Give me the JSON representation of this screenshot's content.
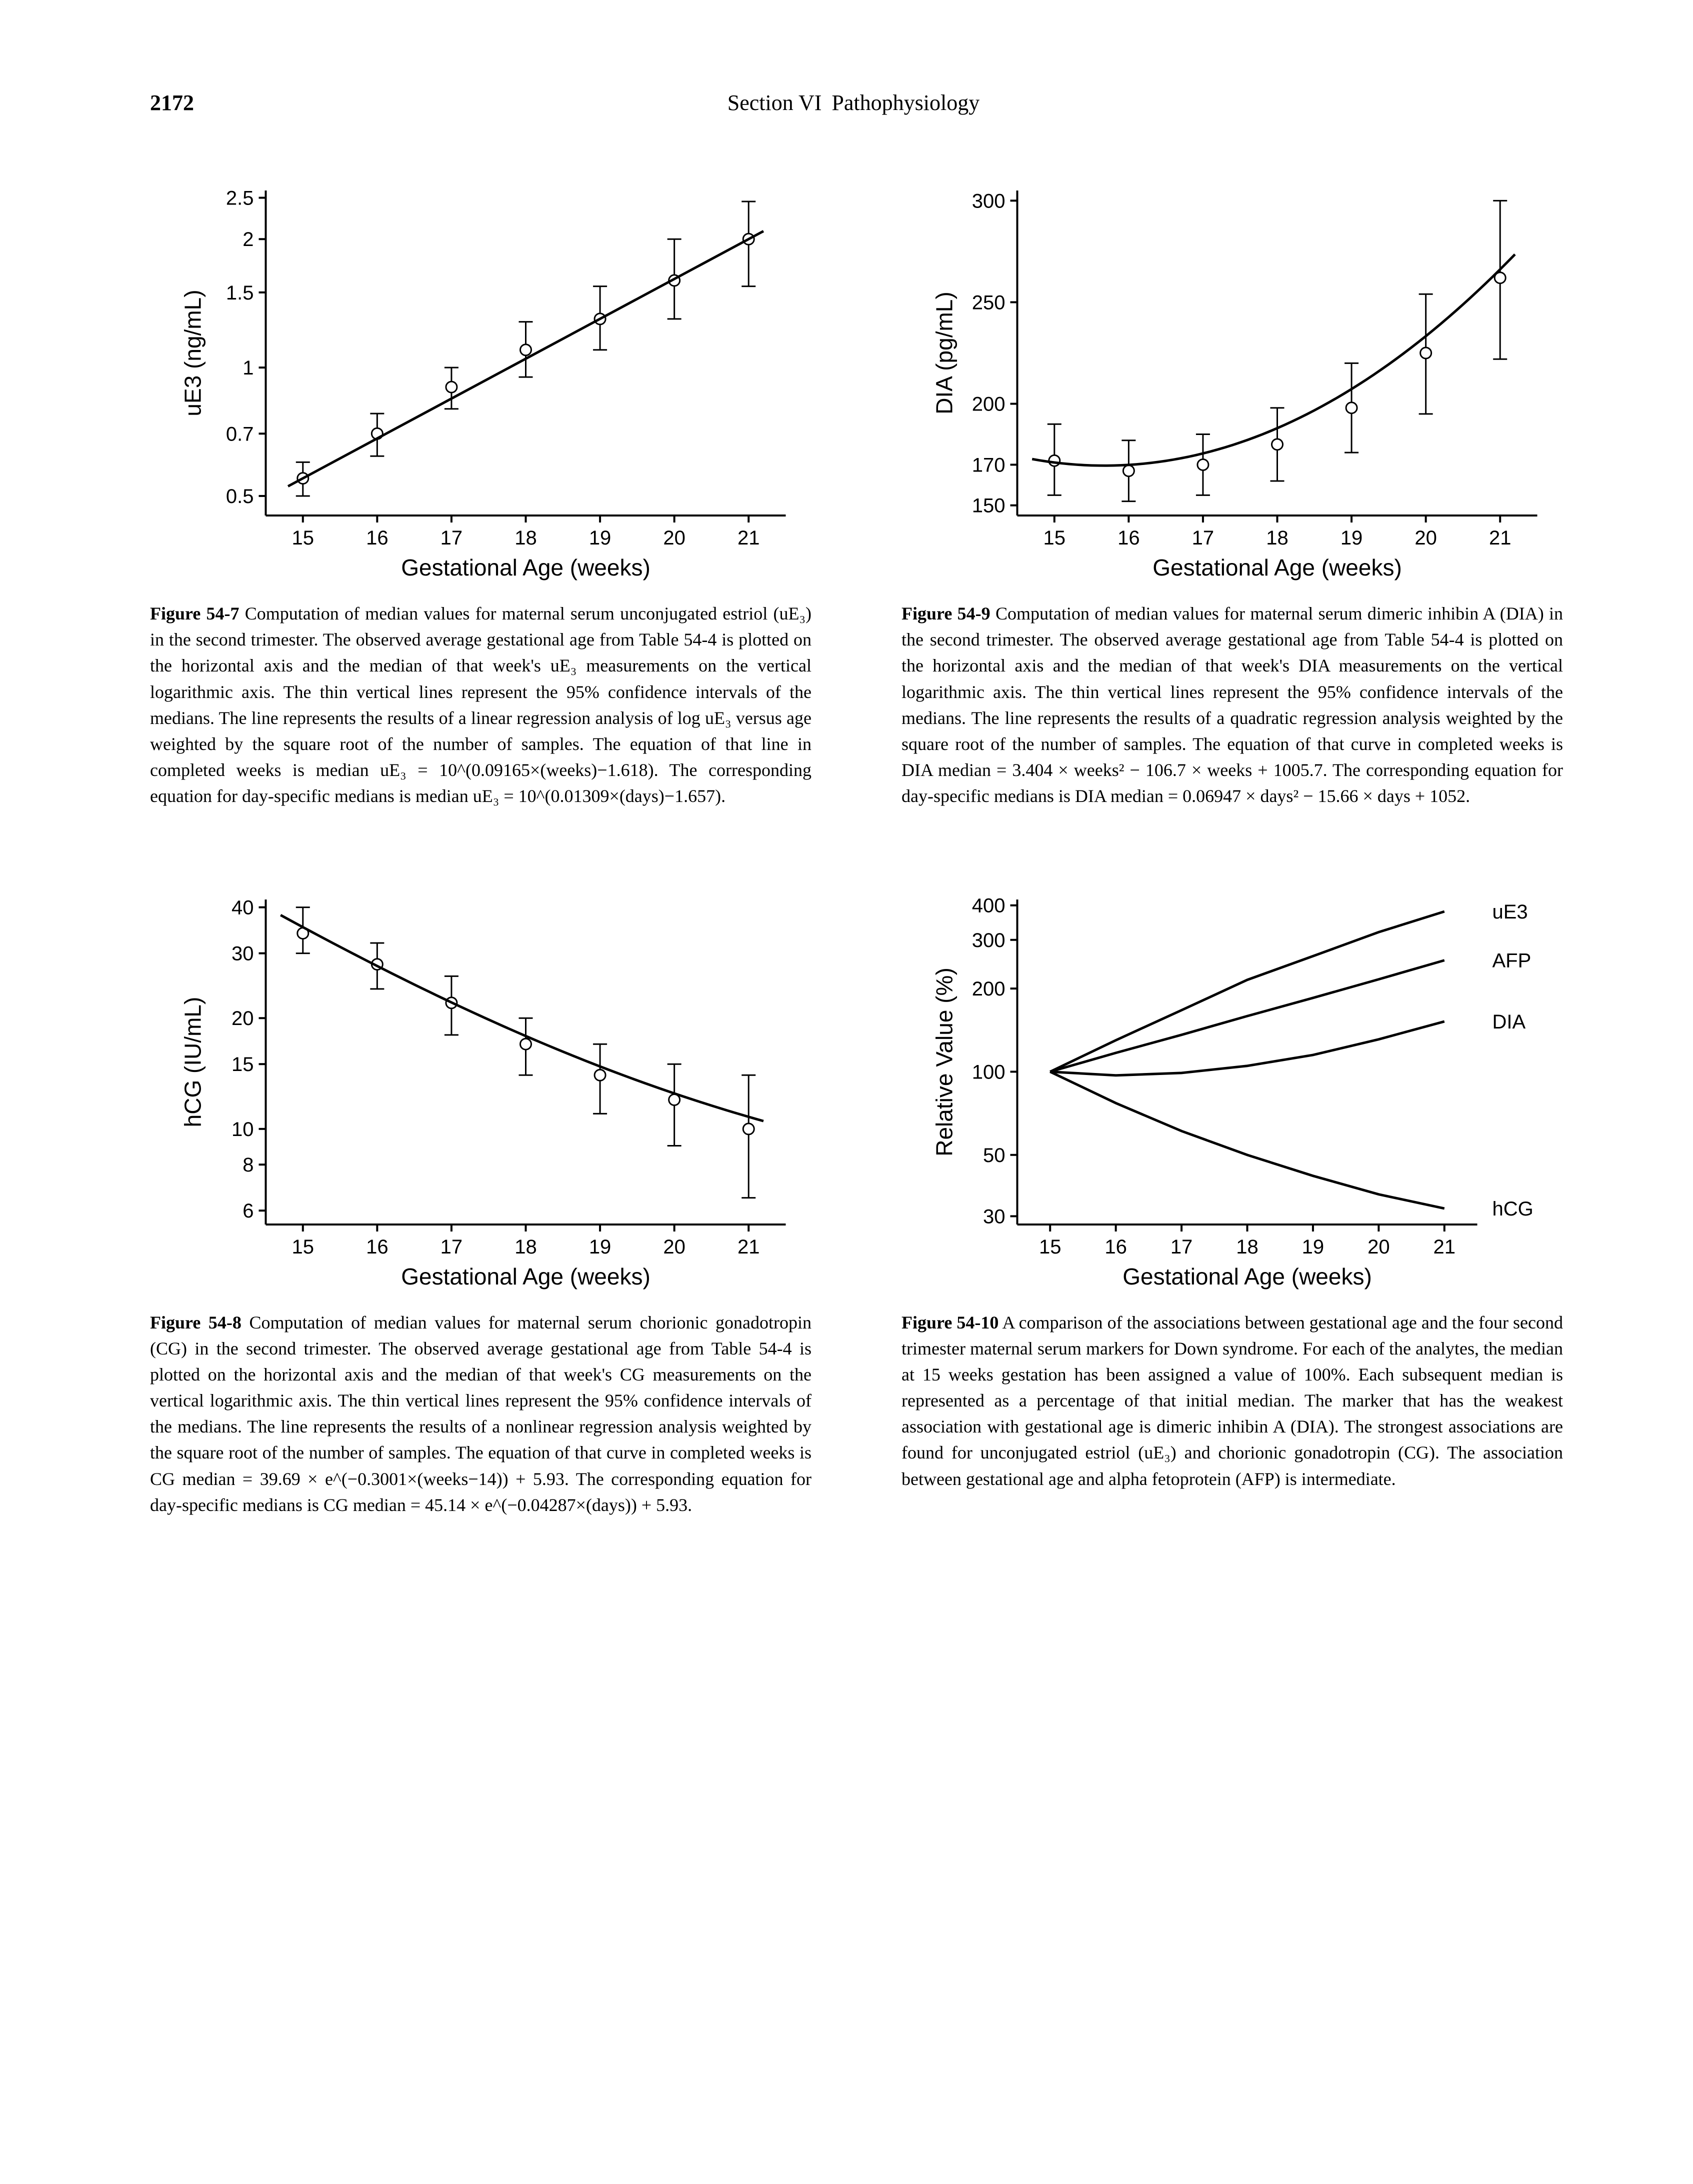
{
  "header": {
    "page_number": "2172",
    "section_label": "Section VI",
    "section_title": "Pathophysiology"
  },
  "fig7": {
    "type": "line-with-errorbars",
    "x_label": "Gestational Age (weeks)",
    "y_label": "uE3 (ng/mL)",
    "x_ticks": [
      15,
      16,
      17,
      18,
      19,
      20,
      21
    ],
    "y_ticks": [
      0.5,
      0.7,
      1.0,
      1.5,
      2.0,
      2.5
    ],
    "y_scale": "log",
    "points": [
      {
        "x": 15,
        "y": 0.55,
        "lo": 0.5,
        "hi": 0.6
      },
      {
        "x": 16,
        "y": 0.7,
        "lo": 0.62,
        "hi": 0.78
      },
      {
        "x": 17,
        "y": 0.9,
        "lo": 0.8,
        "hi": 1.0
      },
      {
        "x": 18,
        "y": 1.1,
        "lo": 0.95,
        "hi": 1.28
      },
      {
        "x": 19,
        "y": 1.3,
        "lo": 1.1,
        "hi": 1.55
      },
      {
        "x": 20,
        "y": 1.6,
        "lo": 1.3,
        "hi": 2.0
      },
      {
        "x": 21,
        "y": 2.0,
        "lo": 1.55,
        "hi": 2.45
      }
    ],
    "xlim": [
      14.5,
      21.5
    ],
    "ylim": [
      0.45,
      2.6
    ],
    "label": "Figure 54-7",
    "caption": "Computation of median values for maternal serum unconjugated estriol (uE₃) in the second trimester. The observed average gestational age from Table 54-4 is plotted on the horizontal axis and the median of that week's uE₃ measurements on the vertical logarithmic axis. The thin vertical lines represent the 95% confidence intervals of the medians. The line represents the results of a linear regression analysis of log uE₃ versus age weighted by the square root of the number of samples. The equation of that line in completed weeks is median uE₃ = 10^(0.09165×(weeks)−1.618). The corresponding equation for day-specific medians is median uE₃ = 10^(0.01309×(days)−1.657)."
  },
  "fig8": {
    "type": "line-with-errorbars",
    "x_label": "Gestational Age (weeks)",
    "y_label": "hCG (IU/mL)",
    "x_ticks": [
      15,
      16,
      17,
      18,
      19,
      20,
      21
    ],
    "y_ticks": [
      6,
      8,
      10,
      15,
      20,
      30,
      40
    ],
    "y_scale": "log",
    "points": [
      {
        "x": 15,
        "y": 34,
        "lo": 30,
        "hi": 40
      },
      {
        "x": 16,
        "y": 28,
        "lo": 24,
        "hi": 32
      },
      {
        "x": 17,
        "y": 22,
        "lo": 18,
        "hi": 26
      },
      {
        "x": 18,
        "y": 17,
        "lo": 14,
        "hi": 20
      },
      {
        "x": 19,
        "y": 14,
        "lo": 11,
        "hi": 17
      },
      {
        "x": 20,
        "y": 12,
        "lo": 9,
        "hi": 15
      },
      {
        "x": 21,
        "y": 10,
        "lo": 6.5,
        "hi": 14
      }
    ],
    "xlim": [
      14.5,
      21.5
    ],
    "ylim": [
      5.5,
      42
    ],
    "label": "Figure 54-8",
    "caption": "Computation of median values for maternal serum chorionic gonadotropin (CG) in the second trimester. The observed average gestational age from Table 54-4 is plotted on the horizontal axis and the median of that week's CG measurements on the vertical logarithmic axis. The thin vertical lines represent the 95% confidence intervals of the medians. The line represents the results of a nonlinear regression analysis weighted by the square root of the number of samples. The equation of that curve in completed weeks is CG median = 39.69 × e^(−0.3001×(weeks−14)) + 5.93. The corresponding equation for day-specific medians is CG median = 45.14 × e^(−0.04287×(days)) + 5.93."
  },
  "fig9": {
    "type": "quadratic-with-errorbars",
    "x_label": "Gestational Age (weeks)",
    "y_label": "DIA (pg/mL)",
    "x_ticks": [
      15,
      16,
      17,
      18,
      19,
      20,
      21
    ],
    "y_ticks": [
      150,
      170,
      200,
      250,
      300
    ],
    "y_scale": "linear",
    "points": [
      {
        "x": 15,
        "y": 172,
        "lo": 155,
        "hi": 190
      },
      {
        "x": 16,
        "y": 167,
        "lo": 152,
        "hi": 182
      },
      {
        "x": 17,
        "y": 170,
        "lo": 155,
        "hi": 185
      },
      {
        "x": 18,
        "y": 180,
        "lo": 162,
        "hi": 198
      },
      {
        "x": 19,
        "y": 198,
        "lo": 176,
        "hi": 220
      },
      {
        "x": 20,
        "y": 225,
        "lo": 195,
        "hi": 254
      },
      {
        "x": 21,
        "y": 262,
        "lo": 222,
        "hi": 300
      }
    ],
    "xlim": [
      14.5,
      21.5
    ],
    "ylim": [
      145,
      305
    ],
    "label": "Figure 54-9",
    "caption": "Computation of median values for maternal serum dimeric inhibin A (DIA) in the second trimester. The observed average gestational age from Table 54-4 is plotted on the horizontal axis and the median of that week's DIA measurements on the vertical logarithmic axis. The thin vertical lines represent the 95% confidence intervals of the medians. The line represents the results of a quadratic regression analysis weighted by the square root of the number of samples. The equation of that curve in completed weeks is DIA median = 3.404 × weeks² − 106.7 × weeks + 1005.7. The corresponding equation for day-specific medians is DIA median = 0.06947 × days² − 15.66 × days + 1052."
  },
  "fig10": {
    "type": "multi-line",
    "x_label": "Gestational Age (weeks)",
    "y_label": "Relative Value (%)",
    "x_ticks": [
      15,
      16,
      17,
      18,
      19,
      20,
      21
    ],
    "y_ticks": [
      30,
      50,
      100,
      200,
      300,
      400
    ],
    "y_scale": "log",
    "series": [
      {
        "name": "uE3",
        "points": [
          [
            15,
            100
          ],
          [
            16,
            130
          ],
          [
            17,
            167
          ],
          [
            18,
            215
          ],
          [
            19,
            262
          ],
          [
            20,
            320
          ],
          [
            21,
            380
          ]
        ]
      },
      {
        "name": "AFP",
        "points": [
          [
            15,
            100
          ],
          [
            16,
            117
          ],
          [
            17,
            136
          ],
          [
            18,
            159
          ],
          [
            19,
            185
          ],
          [
            20,
            216
          ],
          [
            21,
            253
          ]
        ]
      },
      {
        "name": "DIA",
        "points": [
          [
            15,
            100
          ],
          [
            16,
            97
          ],
          [
            17,
            99
          ],
          [
            18,
            105
          ],
          [
            19,
            115
          ],
          [
            20,
            131
          ],
          [
            21,
            152
          ]
        ]
      },
      {
        "name": "hCG",
        "points": [
          [
            15,
            100
          ],
          [
            16,
            77
          ],
          [
            17,
            61
          ],
          [
            18,
            50
          ],
          [
            19,
            42
          ],
          [
            20,
            36
          ],
          [
            21,
            32
          ]
        ]
      }
    ],
    "xlim": [
      14.5,
      21.5
    ],
    "ylim": [
      28,
      420
    ],
    "label": "Figure 54-10",
    "caption": "A comparison of the associations between gestational age and the four second trimester maternal serum markers for Down syndrome. For each of the analytes, the median at 15 weeks gestation has been assigned a value of 100%. Each subsequent median is represented as a percentage of that initial median. The marker that has the weakest association with gestational age is dimeric inhibin A (DIA). The strongest associations are found for unconjugated estriol (uE₃) and chorionic gonadotropin (CG). The association between gestational age and alpha fetoprotein (AFP) is intermediate."
  },
  "colors": {
    "line": "#000000",
    "background": "#ffffff"
  },
  "typography": {
    "caption_fontsize": 36,
    "axis_label_fontsize": 46,
    "tick_fontsize": 40
  }
}
